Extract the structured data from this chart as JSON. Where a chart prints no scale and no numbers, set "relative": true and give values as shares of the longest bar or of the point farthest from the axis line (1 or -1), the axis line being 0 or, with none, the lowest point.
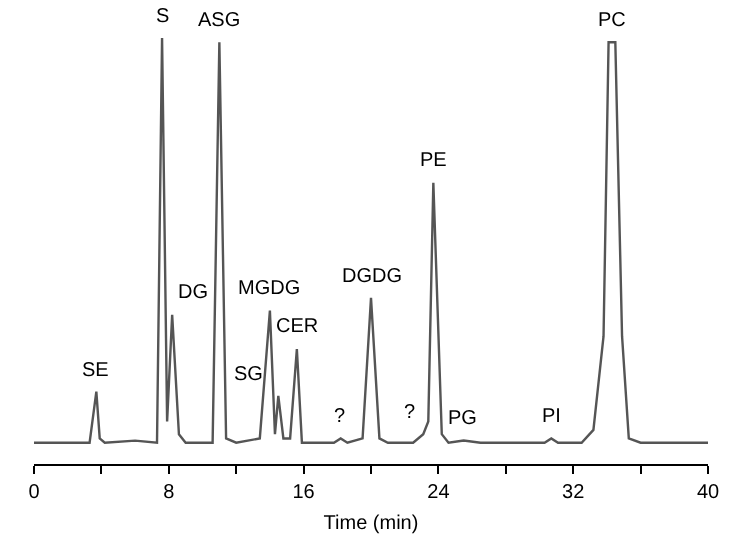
{
  "chart_data": {
    "type": "line",
    "relative": true,
    "xlabel": "Time (min)",
    "xlim": [
      0,
      40
    ],
    "xticks": [
      0,
      {
        "value": 4,
        "label": null
      },
      8,
      {
        "value": 12,
        "label": null
      },
      16,
      {
        "value": 20,
        "label": null
      },
      24,
      {
        "value": 28,
        "label": null
      },
      32,
      {
        "value": 36,
        "label": null
      },
      40
    ],
    "x": [
      0,
      3.3,
      3.7,
      3.9,
      4.2,
      6,
      7.3,
      7.6,
      7.9,
      8.2,
      8.6,
      9,
      10.6,
      11.0,
      11.4,
      12,
      13.4,
      14.0,
      14.3,
      14.5,
      14.8,
      15.2,
      15.6,
      15.9,
      17.8,
      18.2,
      18.6,
      19.5,
      20.0,
      20.5,
      21,
      22.5,
      23.1,
      23.4,
      23.7,
      24.2,
      24.6,
      25.5,
      26.5,
      30.3,
      30.7,
      31.1,
      32.5,
      33.2,
      33.8,
      34.1,
      34.5,
      34.9,
      35.3,
      36,
      40
    ],
    "series": [
      {
        "color": "#555555",
        "values": [
          0.05,
          0.05,
          0.17,
          0.06,
          0.05,
          0.055,
          0.05,
          1.0,
          0.1,
          0.35,
          0.07,
          0.05,
          0.05,
          0.99,
          0.06,
          0.05,
          0.06,
          0.36,
          0.07,
          0.16,
          0.06,
          0.06,
          0.27,
          0.05,
          0.05,
          0.06,
          0.05,
          0.06,
          0.39,
          0.06,
          0.05,
          0.05,
          0.07,
          0.1,
          0.66,
          0.07,
          0.05,
          0.055,
          0.05,
          0.05,
          0.06,
          0.05,
          0.05,
          0.08,
          0.3,
          0.99,
          0.99,
          0.3,
          0.06,
          0.05,
          0.05
        ]
      }
    ],
    "marker": "none",
    "line_style": "solid",
    "annotations": [
      {
        "text": "SE",
        "x": 3.7,
        "y": 0.17
      },
      {
        "text": "S",
        "x": 7.6,
        "y": 1.0
      },
      {
        "text": "DG",
        "x": 8.2,
        "y": 0.35
      },
      {
        "text": "ASG",
        "x": 11.0,
        "y": 0.99
      },
      {
        "text": "MGDG",
        "x": 14.0,
        "y": 0.36
      },
      {
        "text": "SG",
        "x": 14.5,
        "y": 0.16
      },
      {
        "text": "CER",
        "x": 15.6,
        "y": 0.27
      },
      {
        "text": "?",
        "x": 18.2,
        "y": 0.06
      },
      {
        "text": "DGDG",
        "x": 20.0,
        "y": 0.39
      },
      {
        "text": "?",
        "x": 23.1,
        "y": 0.07
      },
      {
        "text": "PE",
        "x": 23.7,
        "y": 0.66
      },
      {
        "text": "PG",
        "x": 25.5,
        "y": 0.055
      },
      {
        "text": "PI",
        "x": 30.7,
        "y": 0.06
      },
      {
        "text": "PC",
        "x": 34.3,
        "y": 0.99
      }
    ]
  }
}
